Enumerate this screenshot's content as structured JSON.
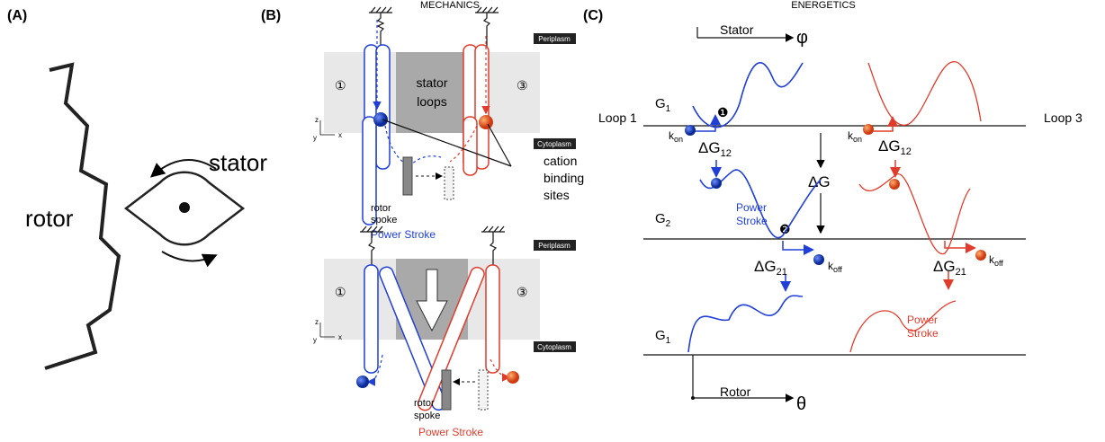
{
  "panel_a": {
    "label": "(A)",
    "rotor": "rotor",
    "stator": "stator"
  },
  "panel_b": {
    "label": "(B)",
    "title": "MECHANICS",
    "top": {
      "periplasm": "Periplasm",
      "cytoplasm": "Cytoplasm",
      "site_1": "①",
      "site_3": "③",
      "stator_loops": [
        "stator",
        "loops"
      ],
      "cation_binding_sites": [
        "cation",
        "binding",
        "sites"
      ],
      "rotor_spoke": [
        "rotor",
        "spoke"
      ],
      "power_stroke": "Power Stroke",
      "axes": [
        "z",
        "y",
        "x"
      ]
    },
    "bottom": {
      "periplasm": "Periplasm",
      "cytoplasm": "Cytoplasm",
      "site_1": "①",
      "site_3": "③",
      "rotor_spoke": [
        "rotor",
        "spoke"
      ],
      "power_stroke": "Power Stroke",
      "axes": [
        "z",
        "y",
        "x"
      ]
    }
  },
  "panel_c": {
    "label": "(C)",
    "title": "ENERGETICS",
    "stator_axis": "Stator",
    "phi": "φ",
    "loop_1": "Loop 1",
    "loop_3": "Loop 3",
    "g1_top": {
      "base": "G",
      "sub": "1"
    },
    "g2": {
      "base": "G",
      "sub": "2"
    },
    "g1_bottom": {
      "base": "G",
      "sub": "1"
    },
    "delta_g": "ΔG",
    "step_1": "❶",
    "step_2": "❷",
    "kon_blue": {
      "base": "k",
      "sub": "on"
    },
    "kon_red": {
      "base": "k",
      "sub": "on"
    },
    "dg12_blue": {
      "base": "ΔG",
      "sub": "12"
    },
    "dg12_red": {
      "base": "ΔG",
      "sub": "12"
    },
    "dg21_blue": {
      "base": "ΔG",
      "sub": "21"
    },
    "dg21_red": {
      "base": "ΔG",
      "sub": "21"
    },
    "koff_blue": {
      "base": "k",
      "sub": "off"
    },
    "koff_red": {
      "base": "k",
      "sub": "off"
    },
    "power_stroke_blue": [
      "Power",
      "Stroke"
    ],
    "power_stroke_red": [
      "Power",
      "Stroke"
    ],
    "rotor_axis": "Rotor",
    "theta": "θ"
  }
}
